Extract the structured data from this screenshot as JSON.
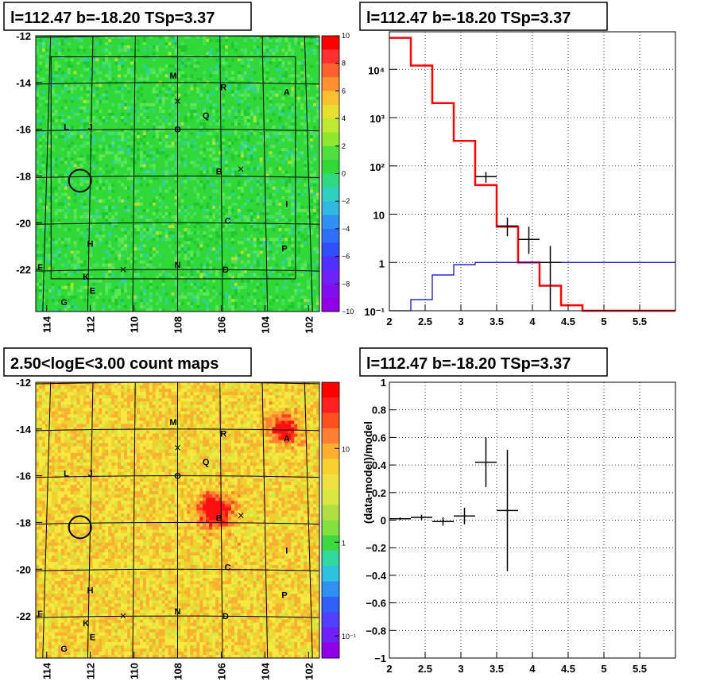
{
  "chart_data": [
    {
      "type": "heatmap",
      "title": "l=112.47 b=-18.20 TSp=3.37",
      "xlim": [
        114.5,
        101.5
      ],
      "ylim": [
        -23.8,
        -12
      ],
      "x_ticks": [
        "114",
        "112",
        "110",
        "108",
        "106",
        "104",
        "102"
      ],
      "y_ticks": [
        "-12",
        "-14",
        "-16",
        "-18",
        "-20",
        "-22"
      ],
      "colorbar": {
        "range": [
          -10,
          10
        ],
        "ticks": [
          "10",
          "8",
          "6",
          "4",
          "2",
          "0",
          "−2",
          "−4",
          "−6",
          "−8",
          "−10"
        ]
      },
      "base_color": "#30d838",
      "sources": [
        {
          "label": "M",
          "l": 108.2,
          "b": -13.7
        },
        {
          "label": "R",
          "l": 105.9,
          "b": -14.2
        },
        {
          "label": "A",
          "l": 103.0,
          "b": -14.4
        },
        {
          "label": "Q",
          "l": 106.7,
          "b": -15.4
        },
        {
          "label": "L",
          "l": 113.1,
          "b": -15.9
        },
        {
          "label": "J",
          "l": 112.0,
          "b": -15.9
        },
        {
          "label": "O",
          "l": 108.0,
          "b": -16.0
        },
        {
          "label": "B",
          "l": 106.1,
          "b": -17.8
        },
        {
          "label": "I",
          "l": 103.0,
          "b": -19.2
        },
        {
          "label": "C",
          "l": 105.7,
          "b": -19.9
        },
        {
          "label": "H",
          "l": 112.0,
          "b": -20.9
        },
        {
          "label": "P",
          "l": 103.1,
          "b": -21.1
        },
        {
          "label": "F",
          "l": 114.3,
          "b": -21.9
        },
        {
          "label": "N",
          "l": 108.0,
          "b": -21.8
        },
        {
          "label": "D",
          "l": 105.8,
          "b": -22.0
        },
        {
          "label": "K",
          "l": 112.2,
          "b": -22.3
        },
        {
          "label": "E",
          "l": 111.9,
          "b": -22.9
        },
        {
          "label": "G",
          "l": 113.2,
          "b": -23.4
        }
      ],
      "crosses": [
        {
          "l": 108.0,
          "b": -14.8
        },
        {
          "l": 105.1,
          "b": -17.7
        },
        {
          "l": 110.5,
          "b": -22.0
        }
      ],
      "circle": {
        "l": 112.47,
        "b": -18.2
      }
    },
    {
      "type": "line",
      "title": "l=112.47 b=-18.20 TSp=3.37",
      "xlim": [
        2,
        6
      ],
      "ylim": [
        0.1,
        60000
      ],
      "y_scale": "log",
      "x_ticks": [
        "2",
        "2.5",
        "3",
        "3.5",
        "4",
        "4.5",
        "5",
        "5.5"
      ],
      "y_ticks": [
        "10⁻¹",
        "1",
        "10",
        "10²",
        "10³",
        "10⁴"
      ],
      "grid": true,
      "series": [
        {
          "type": "step",
          "color": "#ff0000",
          "edges": [
            2.0,
            2.3,
            2.6,
            2.9,
            3.2,
            3.5,
            3.8,
            4.1,
            4.4,
            4.7,
            6.0
          ],
          "values": [
            45000,
            12000,
            2000,
            330,
            40,
            5.5,
            1.0,
            0.33,
            0.13,
            0.1
          ]
        },
        {
          "type": "step",
          "color": "#0000cc",
          "edges": [
            2.0,
            2.3,
            2.6,
            2.9,
            3.2,
            3.5,
            3.8,
            4.1,
            6.0
          ],
          "values": [
            0.05,
            0.17,
            0.55,
            0.9,
            1.0,
            1.0,
            1.0,
            1.0
          ]
        },
        {
          "type": "errorbar",
          "color": "#000000",
          "points": [
            {
              "x": 3.35,
              "y": 60,
              "xerr": 0.15,
              "ylo": 45,
              "yhi": 75
            },
            {
              "x": 3.65,
              "y": 5.7,
              "xerr": 0.15,
              "ylo": 3.5,
              "yhi": 8.5
            },
            {
              "x": 3.95,
              "y": 3.0,
              "xerr": 0.15,
              "ylo": 1.5,
              "yhi": 5.5
            },
            {
              "x": 4.25,
              "y": 1.0,
              "xerr": 0.15,
              "ylo": 0.1,
              "yhi": 2.2
            }
          ]
        }
      ]
    },
    {
      "type": "heatmap",
      "title": "2.50<logE<3.00 count maps",
      "xlim": [
        114.5,
        101.5
      ],
      "ylim": [
        -23.8,
        -12
      ],
      "x_ticks": [
        "114",
        "112",
        "110",
        "108",
        "106",
        "104",
        "102"
      ],
      "y_ticks": [
        "-12",
        "-14",
        "-16",
        "-18",
        "-20",
        "-22"
      ],
      "colorbar": {
        "scale": "log",
        "ticks": [
          "10",
          "1",
          "10⁻¹"
        ]
      },
      "base_color": "#f0d030",
      "hotspots": [
        {
          "label": "A",
          "l": 103.1,
          "b": -14.0
        },
        {
          "label": "B",
          "l": 106.3,
          "b": -17.5
        }
      ],
      "sources": [
        {
          "label": "M",
          "l": 108.2,
          "b": -13.7
        },
        {
          "label": "R",
          "l": 105.9,
          "b": -14.2
        },
        {
          "label": "A",
          "l": 103.0,
          "b": -14.4
        },
        {
          "label": "Q",
          "l": 106.7,
          "b": -15.4
        },
        {
          "label": "L",
          "l": 113.1,
          "b": -15.9
        },
        {
          "label": "J",
          "l": 112.0,
          "b": -15.9
        },
        {
          "label": "O",
          "l": 108.0,
          "b": -16.0
        },
        {
          "label": "B",
          "l": 106.1,
          "b": -17.8
        },
        {
          "label": "I",
          "l": 103.0,
          "b": -19.2
        },
        {
          "label": "C",
          "l": 105.7,
          "b": -19.9
        },
        {
          "label": "H",
          "l": 112.0,
          "b": -20.9
        },
        {
          "label": "P",
          "l": 103.1,
          "b": -21.1
        },
        {
          "label": "F",
          "l": 114.3,
          "b": -21.9
        },
        {
          "label": "N",
          "l": 108.0,
          "b": -21.8
        },
        {
          "label": "D",
          "l": 105.8,
          "b": -22.0
        },
        {
          "label": "K",
          "l": 112.2,
          "b": -22.3
        },
        {
          "label": "E",
          "l": 111.9,
          "b": -22.9
        },
        {
          "label": "G",
          "l": 113.2,
          "b": -23.4
        }
      ],
      "crosses": [
        {
          "l": 108.0,
          "b": -14.8
        },
        {
          "l": 105.1,
          "b": -17.7
        },
        {
          "l": 110.5,
          "b": -22.0
        }
      ],
      "circle": {
        "l": 112.47,
        "b": -18.2
      }
    },
    {
      "type": "scatter",
      "title": "l=112.47 b=-18.20 TSp=3.37",
      "ylabel": "(data-model)/model",
      "xlim": [
        2,
        6
      ],
      "ylim": [
        -1,
        1
      ],
      "x_ticks": [
        "2",
        "2.5",
        "3",
        "3.5",
        "4",
        "4.5",
        "5",
        "5.5"
      ],
      "y_ticks": [
        "1",
        "0.8",
        "0.6",
        "0.4",
        "0.2",
        "0",
        "−0.2",
        "−0.4",
        "−0.6",
        "−0.8",
        "−1"
      ],
      "grid": true,
      "points": [
        {
          "x": 2.15,
          "y": 0.01,
          "xerr": 0.15,
          "yerr": 0.01
        },
        {
          "x": 2.45,
          "y": 0.02,
          "xerr": 0.15,
          "yerr": 0.02
        },
        {
          "x": 2.75,
          "y": -0.01,
          "xerr": 0.15,
          "yerr": 0.03
        },
        {
          "x": 3.05,
          "y": 0.03,
          "xerr": 0.15,
          "yerr": 0.06
        },
        {
          "x": 3.35,
          "y": 0.42,
          "xerr": 0.15,
          "yerr": 0.18
        },
        {
          "x": 3.65,
          "y": 0.07,
          "xerr": 0.15,
          "yerr": 0.44
        }
      ]
    }
  ]
}
